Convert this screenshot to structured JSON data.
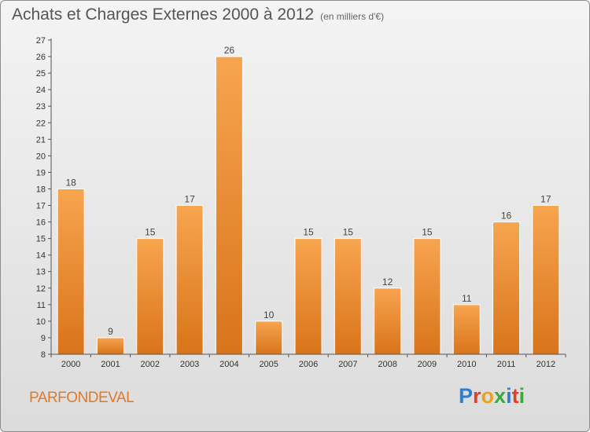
{
  "header": {
    "title": "Achats et Charges Externes 2000 à 2012",
    "unit": "(en milliers d'€)"
  },
  "footer": {
    "commune": "PARFONDEVAL",
    "logo_text": "Proxiti",
    "logo_colors": [
      "#2a7fd4",
      "#e0402a",
      "#f0a020",
      "#3aaa3a",
      "#2a7fd4",
      "#e0402a",
      "#3aaa3a"
    ]
  },
  "colors": {
    "bar_top": "#f7a54f",
    "bar_bottom": "#d9741a",
    "bar_edge": "#ffffff",
    "axis": "#555555"
  },
  "chart_data": {
    "type": "bar",
    "categories": [
      "2000",
      "2001",
      "2002",
      "2003",
      "2004",
      "2005",
      "2006",
      "2007",
      "2008",
      "2009",
      "2010",
      "2011",
      "2012"
    ],
    "values": [
      18,
      9,
      15,
      17,
      26,
      10,
      15,
      15,
      12,
      15,
      11,
      16,
      17
    ],
    "ylim": [
      8,
      27
    ],
    "yticks": [
      8,
      9,
      10,
      11,
      12,
      13,
      14,
      15,
      16,
      17,
      18,
      19,
      20,
      21,
      22,
      23,
      24,
      25,
      26,
      27
    ],
    "grid": false,
    "title": "Achats et Charges Externes 2000 à 2012",
    "subtitle": "(en milliers d'€)"
  }
}
